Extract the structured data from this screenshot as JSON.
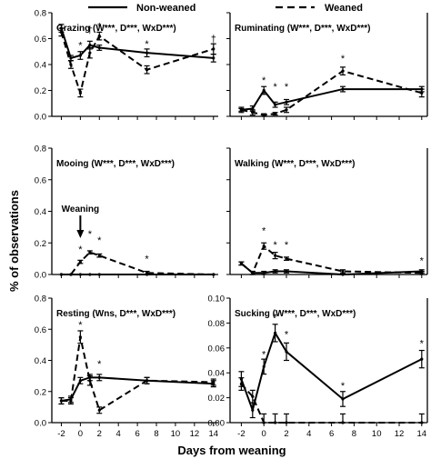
{
  "legend": {
    "items": [
      "Non-weaned",
      "Weaned"
    ]
  },
  "xlabel": "Days from weaning",
  "ylabel": "% of observations",
  "xticks": [
    -2,
    0,
    2,
    4,
    6,
    8,
    10,
    12,
    14
  ],
  "chart_data": [
    {
      "type": "line",
      "title": "Grazing (W***, D***, WxD***)",
      "ylim": [
        0,
        0.8
      ],
      "yticks": [
        "0.0",
        "0.2",
        "0.4",
        "0.6",
        "0.8"
      ],
      "x": [
        -2,
        -1,
        0,
        1,
        2,
        7,
        14
      ],
      "series": [
        {
          "name": "Non-weaned",
          "style": "solid",
          "values": [
            0.68,
            0.45,
            0.47,
            0.55,
            0.53,
            0.49,
            0.45
          ],
          "errors": [
            0.03,
            0.02,
            0.03,
            0.03,
            0.02,
            0.03,
            0.03
          ]
        },
        {
          "name": "Weaned",
          "style": "dashed",
          "values": [
            0.65,
            0.4,
            0.18,
            0.49,
            0.62,
            0.36,
            0.52
          ],
          "errors": [
            0.03,
            0.03,
            0.03,
            0.04,
            0.03,
            0.03,
            0.04
          ]
        }
      ],
      "annotations": [
        {
          "x": 0,
          "y": 0.55,
          "text": "*"
        },
        {
          "x": 1,
          "y": 0.67,
          "text": "†"
        },
        {
          "x": 2,
          "y": 0.7,
          "text": "*"
        },
        {
          "x": 7,
          "y": 0.56,
          "text": "*"
        },
        {
          "x": 14,
          "y": 0.6,
          "text": "†"
        }
      ]
    },
    {
      "type": "line",
      "title": "Ruminating (W***, D***, WxD***)",
      "ylim": [
        0,
        0.8
      ],
      "yticks": [],
      "x": [
        -2,
        -1,
        0,
        1,
        2,
        7,
        14
      ],
      "series": [
        {
          "name": "Non-weaned",
          "style": "solid",
          "values": [
            0.05,
            0.06,
            0.2,
            0.09,
            0.11,
            0.21,
            0.21
          ],
          "errors": [
            0.02,
            0.02,
            0.03,
            0.02,
            0.02,
            0.02,
            0.02
          ]
        },
        {
          "name": "Weaned",
          "style": "dashed",
          "values": [
            0.05,
            0.03,
            0.01,
            0.02,
            0.05,
            0.35,
            0.18
          ],
          "errors": [
            0.01,
            0.02,
            0.01,
            0.01,
            0.02,
            0.03,
            0.03
          ]
        }
      ],
      "annotations": [
        {
          "x": 0,
          "y": 0.28,
          "text": "*"
        },
        {
          "x": 1,
          "y": 0.23,
          "text": "*"
        },
        {
          "x": 2,
          "y": 0.23,
          "text": "*"
        },
        {
          "x": 7,
          "y": 0.45,
          "text": "*"
        }
      ]
    },
    {
      "type": "line",
      "title": "Mooing (W***, D***, WxD***)",
      "ylim": [
        0,
        0.8
      ],
      "yticks": [
        "0.0",
        "0.2",
        "0.4",
        "0.6",
        "0.8"
      ],
      "x": [
        -2,
        -1,
        0,
        1,
        2,
        7,
        14
      ],
      "series": [
        {
          "name": "Non-weaned",
          "style": "solid",
          "values": [
            0.0,
            0.0,
            0.0,
            0.0,
            0.0,
            0.0,
            0.0
          ],
          "errors": [
            0,
            0,
            0,
            0,
            0,
            0,
            0
          ]
        },
        {
          "name": "Weaned",
          "style": "dashed",
          "values": [
            0.0,
            0.0,
            0.08,
            0.14,
            0.12,
            0.01,
            0.0
          ],
          "errors": [
            0,
            0,
            0.01,
            0.01,
            0.01,
            0.01,
            0
          ]
        }
      ],
      "annotations": [
        {
          "x": 0,
          "y": 0.16,
          "text": "*"
        },
        {
          "x": 1,
          "y": 0.26,
          "text": "*"
        },
        {
          "x": 2,
          "y": 0.22,
          "text": "*"
        },
        {
          "x": 7,
          "y": 0.1,
          "text": "*"
        }
      ],
      "callout": {
        "text": "Weaning",
        "x": 0
      }
    },
    {
      "type": "line",
      "title": "Walking (W***, D***, WxD***)",
      "ylim": [
        0,
        0.8
      ],
      "yticks": [],
      "x": [
        -2,
        -1,
        0,
        1,
        2,
        7,
        14
      ],
      "series": [
        {
          "name": "Non-weaned",
          "style": "solid",
          "values": [
            0.07,
            0.01,
            0.01,
            0.02,
            0.02,
            0.0,
            0.02
          ],
          "errors": [
            0.01,
            0.01,
            0.01,
            0.01,
            0.01,
            0.0,
            0.01
          ]
        },
        {
          "name": "Weaned",
          "style": "dashed",
          "values": [
            0.07,
            0.01,
            0.18,
            0.12,
            0.1,
            0.02,
            0.01
          ],
          "errors": [
            0.01,
            0.01,
            0.02,
            0.02,
            0.01,
            0.01,
            0.01
          ]
        }
      ],
      "annotations": [
        {
          "x": 0,
          "y": 0.28,
          "text": "*"
        },
        {
          "x": 1,
          "y": 0.19,
          "text": "*"
        },
        {
          "x": 2,
          "y": 0.19,
          "text": "*"
        },
        {
          "x": 14,
          "y": 0.09,
          "text": "*"
        }
      ]
    },
    {
      "type": "line",
      "title": "Resting (Wns, D***, WxD***)",
      "ylim": [
        0,
        0.8
      ],
      "yticks": [
        "0.0",
        "0.2",
        "0.4",
        "0.6",
        "0.8"
      ],
      "x": [
        -2,
        -1,
        0,
        1,
        2,
        7,
        14
      ],
      "series": [
        {
          "name": "Non-weaned",
          "style": "solid",
          "values": [
            0.14,
            0.15,
            0.27,
            0.29,
            0.29,
            0.27,
            0.25
          ],
          "errors": [
            0.02,
            0.02,
            0.02,
            0.02,
            0.02,
            0.02,
            0.02
          ]
        },
        {
          "name": "Weaned",
          "style": "dashed",
          "values": [
            0.14,
            0.14,
            0.55,
            0.27,
            0.08,
            0.27,
            0.26
          ],
          "errors": [
            0.02,
            0.02,
            0.04,
            0.03,
            0.02,
            0.02,
            0.02
          ]
        }
      ],
      "annotations": [
        {
          "x": 0,
          "y": 0.63,
          "text": "*"
        },
        {
          "x": 2,
          "y": 0.38,
          "text": "*"
        }
      ]
    },
    {
      "type": "line",
      "title": "Sucking (W***, D***, WxD***)",
      "ylim": [
        0,
        0.1
      ],
      "yticks": [
        "0.00",
        "0.02",
        "0.04",
        "0.06",
        "0.08",
        "0.10"
      ],
      "x": [
        -2,
        -1,
        0,
        1,
        2,
        7,
        14
      ],
      "series": [
        {
          "name": "Non-weaned",
          "style": "solid",
          "values": [
            0.035,
            0.01,
            0.045,
            0.072,
            0.057,
            0.019,
            0.051
          ],
          "errors": [
            0.006,
            0.006,
            0.006,
            0.007,
            0.007,
            0.006,
            0.007
          ]
        },
        {
          "name": "Weaned",
          "style": "dashed",
          "values": [
            0.031,
            0.021,
            0.0,
            0.0,
            0.0,
            0.0,
            0.0
          ],
          "errors": [
            0.005,
            0.005,
            0.007,
            0.007,
            0.007,
            0.007,
            0.007
          ]
        }
      ],
      "annotations": [
        {
          "x": 0,
          "y": 0.055,
          "text": "*"
        },
        {
          "x": 1,
          "y": 0.085,
          "text": "*"
        },
        {
          "x": 2,
          "y": 0.071,
          "text": "*"
        },
        {
          "x": 7,
          "y": 0.03,
          "text": "*"
        },
        {
          "x": 14,
          "y": 0.064,
          "text": "*"
        }
      ]
    }
  ]
}
